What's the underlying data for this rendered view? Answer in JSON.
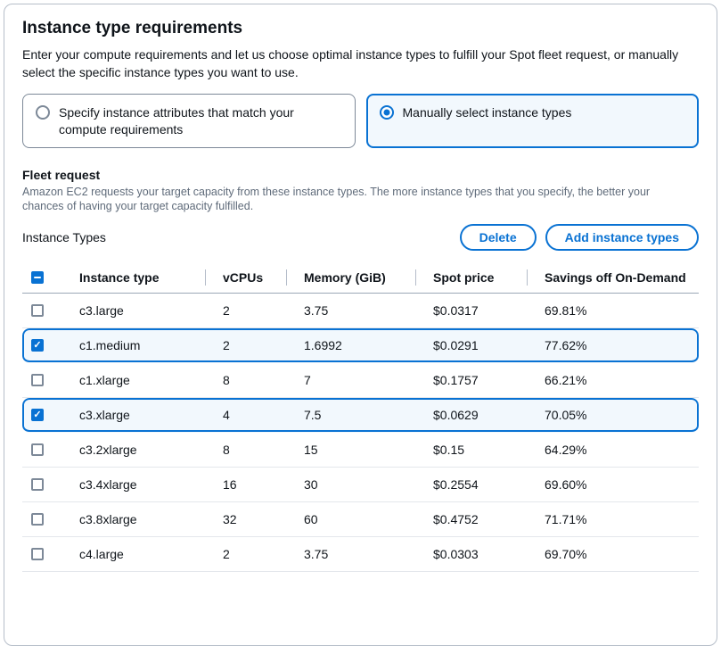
{
  "header": {
    "title": "Instance type requirements",
    "description": "Enter your compute requirements and let us choose optimal instance types to fulfill your Spot fleet request, or manually select the specific instance types you want to use."
  },
  "options": {
    "attributes": {
      "label": "Specify instance attributes that match your compute requirements",
      "selected": false
    },
    "manual": {
      "label": "Manually select instance types",
      "selected": true
    }
  },
  "fleet_request": {
    "title": "Fleet request",
    "description": "Amazon EC2 requests your target capacity from these instance types. The more instance types that you specify, the better your chances of having your target capacity fulfilled."
  },
  "toolbar": {
    "label": "Instance Types",
    "delete_label": "Delete",
    "add_label": "Add instance types"
  },
  "table": {
    "select_all_state": "indeterminate",
    "columns": [
      "Instance type",
      "vCPUs",
      "Memory (GiB)",
      "Spot price",
      "Savings off On-Demand"
    ],
    "rows": [
      {
        "instance_type": "c3.large",
        "vcpus": "2",
        "memory_gib": "3.75",
        "spot_price": "$0.0317",
        "savings_off_on_demand": "69.81%",
        "selected": false
      },
      {
        "instance_type": "c1.medium",
        "vcpus": "2",
        "memory_gib": "1.6992",
        "spot_price": "$0.0291",
        "savings_off_on_demand": "77.62%",
        "selected": true
      },
      {
        "instance_type": "c1.xlarge",
        "vcpus": "8",
        "memory_gib": "7",
        "spot_price": "$0.1757",
        "savings_off_on_demand": "66.21%",
        "selected": false
      },
      {
        "instance_type": "c3.xlarge",
        "vcpus": "4",
        "memory_gib": "7.5",
        "spot_price": "$0.0629",
        "savings_off_on_demand": "70.05%",
        "selected": true
      },
      {
        "instance_type": "c3.2xlarge",
        "vcpus": "8",
        "memory_gib": "15",
        "spot_price": "$0.15",
        "savings_off_on_demand": "64.29%",
        "selected": false
      },
      {
        "instance_type": "c3.4xlarge",
        "vcpus": "16",
        "memory_gib": "30",
        "spot_price": "$0.2554",
        "savings_off_on_demand": "69.60%",
        "selected": false
      },
      {
        "instance_type": "c3.8xlarge",
        "vcpus": "32",
        "memory_gib": "60",
        "spot_price": "$0.4752",
        "savings_off_on_demand": "71.71%",
        "selected": false
      },
      {
        "instance_type": "c4.large",
        "vcpus": "2",
        "memory_gib": "3.75",
        "spot_price": "$0.0303",
        "savings_off_on_demand": "69.70%",
        "selected": false
      }
    ]
  },
  "colors": {
    "accent": "#0972d3",
    "selected_background": "#f2f8fd",
    "text": "#0f141a",
    "secondary_text": "#5f6b7a"
  }
}
